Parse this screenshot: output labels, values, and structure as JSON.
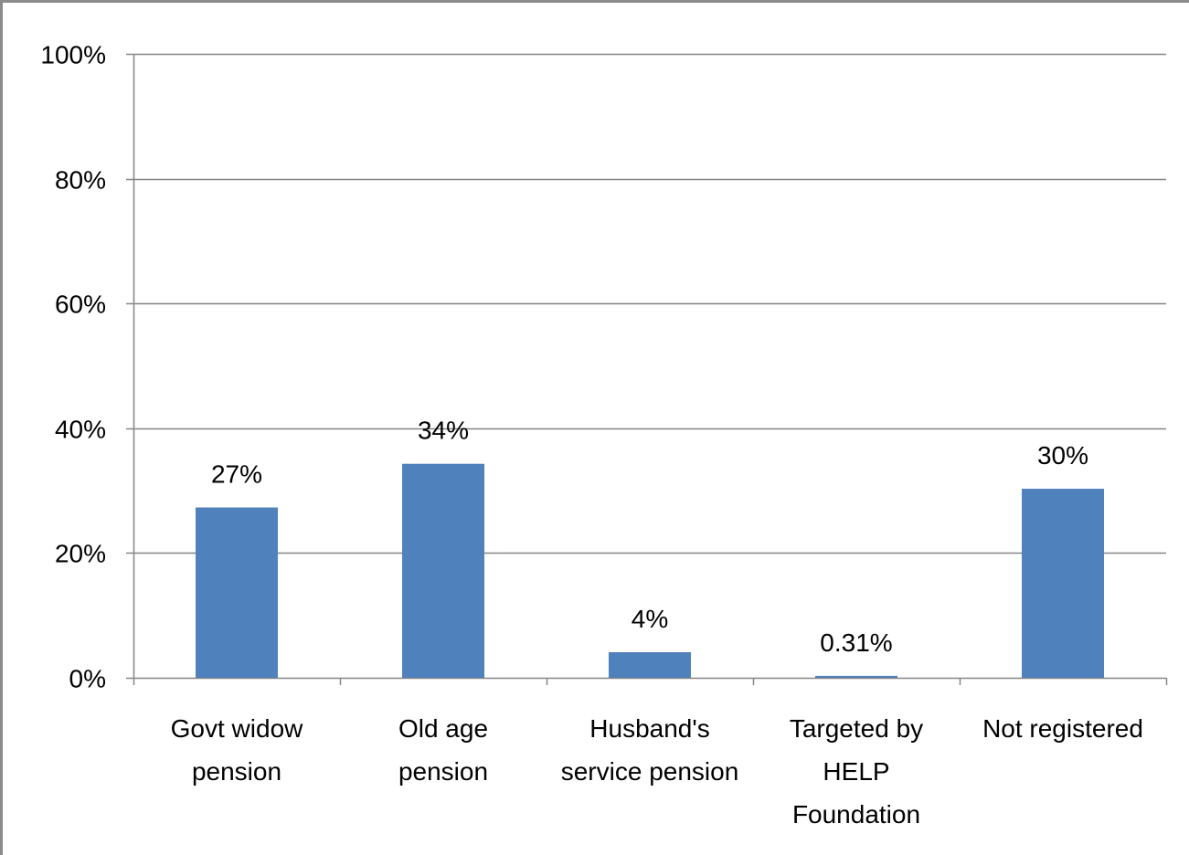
{
  "chart_data": {
    "type": "bar",
    "categories": [
      [
        "Govt widow",
        "pension"
      ],
      [
        "Old age",
        "pension"
      ],
      [
        "Husband's",
        "service pension"
      ],
      [
        "Targeted by",
        "HELP",
        "Foundation"
      ],
      [
        "Not registered"
      ]
    ],
    "values": [
      27.3,
      34.3,
      4.1,
      0.31,
      30.3
    ],
    "data_labels": [
      "27%",
      "34%",
      "4%",
      "0.31%",
      "30%"
    ],
    "yticks": [
      "0%",
      "20%",
      "40%",
      "60%",
      "80%",
      "100%"
    ],
    "ylim": [
      0,
      100
    ],
    "grid": true,
    "legend": "none",
    "colors": {
      "bar": "#4f81bd",
      "grid": "#868686",
      "axis": "#868686",
      "border": "#8c8c8c"
    }
  }
}
